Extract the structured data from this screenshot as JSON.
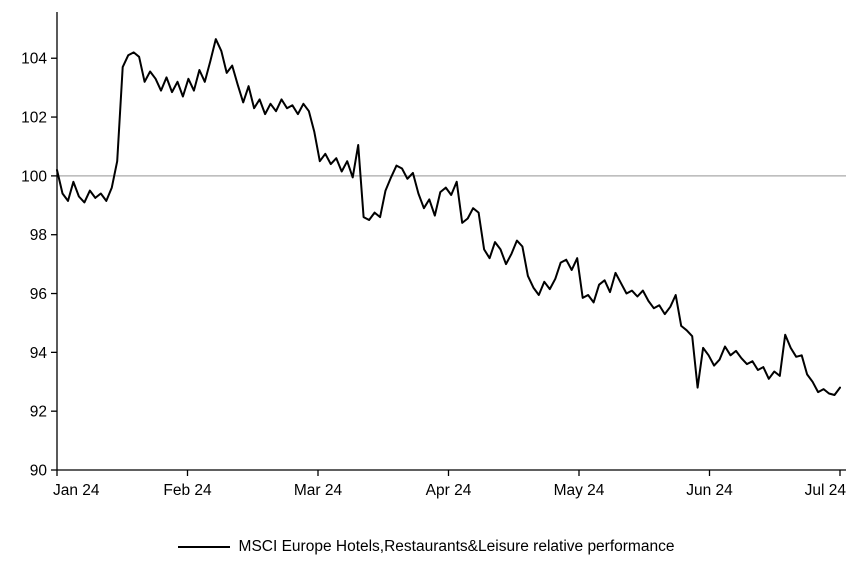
{
  "chart_data": {
    "type": "line",
    "title": "",
    "legend": "MSCI Europe Hotels,Restaurants&Leisure relative performance",
    "x_tick_labels": [
      "Jan 24",
      "Feb 24",
      "Mar 24",
      "Apr 24",
      "May 24",
      "Jun 24",
      "Jul 24"
    ],
    "y_ticks": [
      90,
      92,
      94,
      96,
      98,
      100,
      102,
      104
    ],
    "ylim": [
      90,
      105.3
    ],
    "reference_line": 100,
    "line_color": "#000000",
    "reference_line_color": "#aaaaaa",
    "axis_color": "#000000",
    "grid": false,
    "legend_position": "bottom-center",
    "values": [
      100.2,
      99.4,
      99.15,
      99.8,
      99.3,
      99.1,
      99.5,
      99.25,
      99.4,
      99.15,
      99.6,
      100.5,
      103.7,
      104.1,
      104.2,
      104.05,
      103.2,
      103.55,
      103.3,
      102.9,
      103.35,
      102.85,
      103.2,
      102.7,
      103.3,
      102.9,
      103.6,
      103.2,
      103.9,
      104.65,
      104.25,
      103.5,
      103.75,
      103.1,
      102.5,
      103.05,
      102.3,
      102.6,
      102.1,
      102.45,
      102.2,
      102.6,
      102.3,
      102.4,
      102.1,
      102.45,
      102.2,
      101.5,
      100.5,
      100.75,
      100.4,
      100.6,
      100.15,
      100.5,
      99.95,
      101.05,
      98.6,
      98.5,
      98.75,
      98.6,
      99.5,
      99.95,
      100.35,
      100.25,
      99.9,
      100.1,
      99.4,
      98.9,
      99.2,
      98.65,
      99.45,
      99.6,
      99.35,
      99.8,
      98.4,
      98.55,
      98.9,
      98.75,
      97.5,
      97.2,
      97.75,
      97.5,
      97.0,
      97.35,
      97.8,
      97.6,
      96.6,
      96.2,
      95.95,
      96.4,
      96.15,
      96.5,
      97.05,
      97.15,
      96.8,
      97.2,
      95.85,
      95.95,
      95.7,
      96.3,
      96.45,
      96.05,
      96.7,
      96.35,
      96.0,
      96.1,
      95.9,
      96.1,
      95.75,
      95.5,
      95.6,
      95.3,
      95.55,
      95.95,
      94.9,
      94.75,
      94.55,
      92.8,
      94.15,
      93.9,
      93.55,
      93.75,
      94.2,
      93.9,
      94.05,
      93.8,
      93.6,
      93.7,
      93.4,
      93.5,
      93.1,
      93.35,
      93.2,
      94.6,
      94.15,
      93.85,
      93.9,
      93.25,
      93.0,
      92.65,
      92.75,
      92.6,
      92.55,
      92.8
    ]
  }
}
